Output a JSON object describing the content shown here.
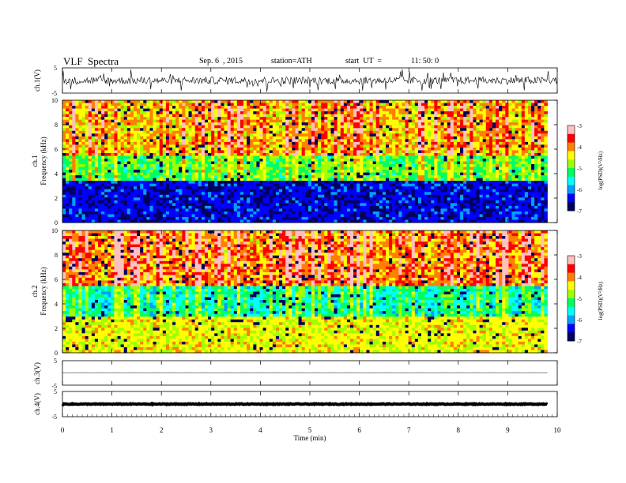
{
  "header": {
    "title": "VLF  Spectra",
    "date": "Sep. 6  , 2015",
    "station": "station=ATH",
    "start_label": "start  UT  =",
    "start_time": "11: 50: 0"
  },
  "colors": {
    "spectrogram_scale": [
      "#000060",
      "#0000ff",
      "#00a0ff",
      "#00ffff",
      "#00ff60",
      "#a0ff00",
      "#ffff00",
      "#ff8000",
      "#ff0000",
      "#ffc0c0"
    ]
  },
  "chart_data": [
    {
      "type": "line",
      "panel": "ch1-waveform",
      "ylabel": "ch.1(V)",
      "ylim": [
        -5,
        5
      ],
      "yticks": [
        "5",
        "-5"
      ],
      "xlim": [
        0,
        10
      ],
      "baseline": 0,
      "amplitude_typical": 1.5
    },
    {
      "type": "heatmap",
      "panel": "ch1-spectrogram",
      "ylabel": "ch.1\nFrequency  (kHz)",
      "ylabel_lines": [
        "ch.1",
        "Frequency  (kHz)"
      ],
      "yticks": [
        "0",
        "2",
        "4",
        "6",
        "8",
        "10"
      ],
      "ylim": [
        0,
        10
      ],
      "xlim": [
        0,
        9.8
      ],
      "colorbar": {
        "label": "log(PSD)(V²/Hz)",
        "ticks": [
          "-3",
          "-4",
          "-5",
          "-6",
          "-7"
        ],
        "range": [
          -7,
          -3
        ]
      },
      "description_profile": {
        "low_band_kHz": [
          0,
          3.5
        ],
        "low_level": -6.8,
        "mid_level": -5.2,
        "high_level": -4.4
      }
    },
    {
      "type": "heatmap",
      "panel": "ch2-spectrogram",
      "ylabel": "ch.2\nFrequency  (kHz)",
      "ylabel_lines": [
        "ch.2",
        "Frequency  (kHz)"
      ],
      "yticks": [
        "0",
        "2",
        "4",
        "6",
        "8",
        "10"
      ],
      "ylim": [
        0,
        10
      ],
      "xlim": [
        0,
        9.8
      ],
      "colorbar": {
        "label": "log(PSD)(V²/Hz)",
        "ticks": [
          "-3",
          "-4",
          "-5",
          "-6",
          "-7"
        ],
        "range": [
          -7,
          -3
        ]
      },
      "description_profile": {
        "low_band_kHz": [
          0,
          3.0
        ],
        "low_level": -4.8,
        "mid_level": -5.6,
        "high_level": -4.2
      }
    },
    {
      "type": "line",
      "panel": "ch3-waveform",
      "ylabel": "ch.3(V)",
      "ylim": [
        -5,
        5
      ],
      "yticks": [
        "5",
        "-5"
      ],
      "xlim": [
        0,
        9.8
      ],
      "baseline": 0,
      "amplitude_typical": 0.1
    },
    {
      "type": "line",
      "panel": "ch4-waveform",
      "ylabel": "ch.4(V)",
      "ylim": [
        -5,
        5
      ],
      "yticks": [
        "5",
        "-5"
      ],
      "xlim": [
        0,
        9.8
      ],
      "baseline": 0,
      "amplitude_typical": 0.15
    },
    {
      "type": "axis",
      "panel": "time-axis",
      "xlabel": "Time  (min)",
      "xticks": [
        "0",
        "1",
        "2",
        "3",
        "4",
        "5",
        "6",
        "7",
        "8",
        "9",
        "10"
      ],
      "xlim": [
        0,
        10
      ]
    }
  ]
}
